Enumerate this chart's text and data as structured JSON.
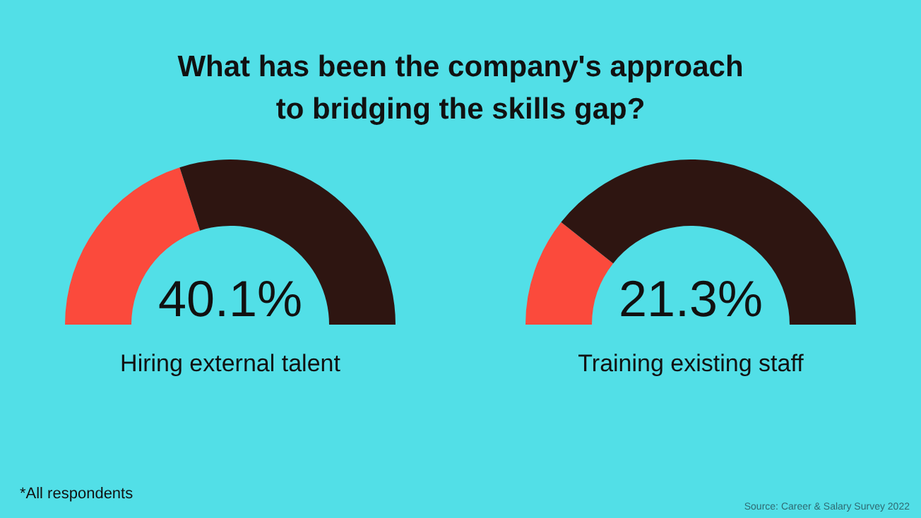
{
  "chart_data": [
    {
      "type": "other",
      "title": "What has been the company's approach to bridging the skills gap?",
      "annotations": [
        "*All respondents",
        "Source: Career & Salary Survey 2022"
      ]
    },
    {
      "type": "donut",
      "categories": [
        null,
        null
      ],
      "values": [
        40.1,
        59.9
      ],
      "colors": [
        "#fb4a3c",
        "#2e1511"
      ],
      "annotations": [
        "40.1%"
      ],
      "xlabel": "Hiring external talent"
    },
    {
      "type": "donut",
      "categories": [
        null,
        null
      ],
      "values": [
        21.3,
        78.7
      ],
      "colors": [
        "#fb4a3c",
        "#2e1511"
      ],
      "annotations": [
        "21.3%"
      ],
      "xlabel": "Training existing staff"
    }
  ]
}
